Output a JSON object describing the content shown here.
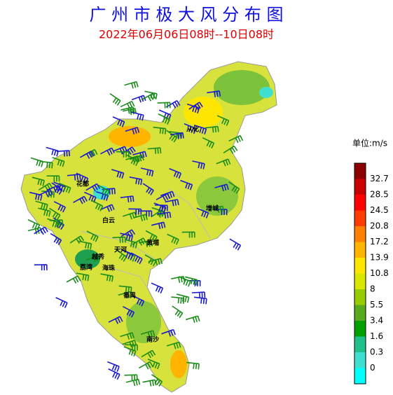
{
  "header": {
    "title": "广 州 市 极 大 风 分 布 图",
    "subtitle": "2022年06月06日08时--10日08时"
  },
  "legend": {
    "unit": "单位:m/s",
    "labels": [
      32.7,
      28.5,
      24.5,
      20.8,
      17.2,
      13.9,
      10.8,
      8,
      5.5,
      3.4,
      1.6,
      0.3,
      0
    ],
    "colors": [
      "#8b0000",
      "#c80000",
      "#ff0000",
      "#ff3c00",
      "#ff7f00",
      "#ffb400",
      "#ffe600",
      "#d9e600",
      "#99cc00",
      "#5aaa1e",
      "#00a000",
      "#20c08c",
      "#40e0d0",
      "#00ffff"
    ]
  },
  "map": {
    "districts": [
      "从化",
      "花都",
      "增城",
      "白云",
      "黄埔",
      "天河",
      "越秀",
      "荔湾",
      "海珠",
      "番禺",
      "南沙"
    ]
  }
}
